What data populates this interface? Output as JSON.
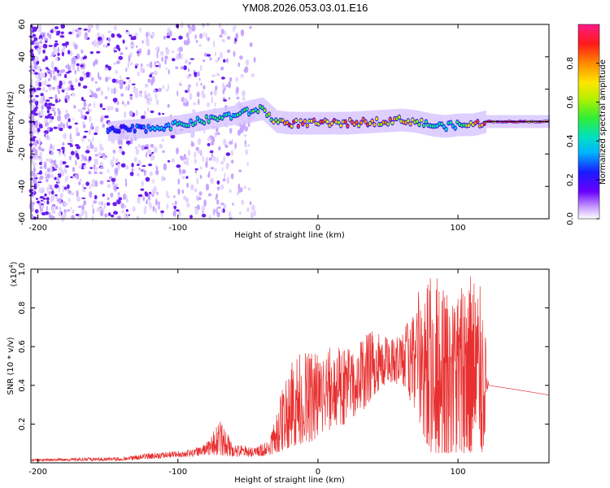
{
  "title": "YM08.2026.053.03.01.E16",
  "colors": {
    "snr_line": "#e83030",
    "speckle": "#7a2cf0",
    "background": "#ffffff"
  },
  "chart_data": [
    {
      "type": "heatmap",
      "title": "YM08.2026.053.03.01.E16",
      "xlabel": "Height of straight line (km)",
      "ylabel": "Frequency (Hz)",
      "xlim": [
        -205,
        165
      ],
      "ylim": [
        -60,
        60
      ],
      "xticks": [
        -200,
        -100,
        0,
        100
      ],
      "yticks": [
        60,
        40,
        20,
        0,
        -20,
        -40,
        -60
      ],
      "ytick_labels": [
        "60",
        "40",
        "20",
        "0",
        "-20",
        "-40",
        "-60"
      ],
      "colorbar": {
        "label": "Normalized spectral amplitude",
        "range": [
          0,
          1
        ],
        "ticks": [
          0.0,
          0.2,
          0.4,
          0.6,
          0.8
        ],
        "tick_labels": [
          "0.0",
          "0.2",
          "0.4",
          "0.6",
          "0.8"
        ],
        "colormap": "rainbow"
      },
      "ridge": {
        "description": "dominant frequency trace",
        "x": [
          -150,
          -140,
          -120,
          -100,
          -80,
          -60,
          -50,
          -40,
          -35,
          -30,
          -20,
          0,
          20,
          40,
          60,
          70,
          80,
          90,
          100,
          110,
          120,
          140,
          165
        ],
        "frequency": [
          -6,
          -5,
          -4,
          -2,
          1,
          4,
          6,
          8,
          4,
          0,
          -1,
          -1,
          -1,
          0,
          1,
          0,
          -2,
          -3,
          -2,
          -2,
          0,
          0,
          0
        ],
        "amplitude": [
          0.3,
          0.25,
          0.35,
          0.45,
          0.5,
          0.45,
          0.5,
          0.55,
          0.6,
          0.7,
          0.85,
          0.8,
          0.8,
          0.8,
          0.75,
          0.75,
          0.5,
          0.45,
          0.45,
          0.7,
          0.95,
          0.95,
          0.85
        ]
      }
    },
    {
      "type": "line",
      "xlabel": "Height of straight line (km)",
      "ylabel": "SNR (10 * v/v)",
      "yscale_label": "(x10",
      "yscale_exp": "4",
      "xlim": [
        -205,
        165
      ],
      "ylim": [
        0,
        1.0
      ],
      "xticks": [
        -200,
        -100,
        0,
        100
      ],
      "yticks": [
        0.2,
        0.4,
        0.6,
        0.8,
        1.0
      ],
      "ytick_labels": [
        "0.2",
        "0.4",
        "0.6",
        "0.8",
        "1.0"
      ],
      "series": [
        {
          "name": "SNR",
          "envelope": {
            "x": [
              -205,
              -140,
              -120,
              -100,
              -90,
              -80,
              -70,
              -60,
              -45,
              -35,
              -30,
              -20,
              -10,
              0,
              10,
              20,
              30,
              40,
              50,
              60,
              70,
              80,
              90,
              100,
              110,
              118,
              122,
              140,
              165
            ],
            "low": [
              0.01,
              0.01,
              0.02,
              0.03,
              0.03,
              0.04,
              0.04,
              0.03,
              0.03,
              0.04,
              0.05,
              0.08,
              0.1,
              0.12,
              0.18,
              0.2,
              0.25,
              0.35,
              0.42,
              0.4,
              0.25,
              0.05,
              0.05,
              0.05,
              0.05,
              0.05,
              0.4,
              0.38,
              0.35
            ],
            "high": [
              0.02,
              0.03,
              0.05,
              0.06,
              0.07,
              0.1,
              0.22,
              0.1,
              0.08,
              0.12,
              0.25,
              0.55,
              0.57,
              0.58,
              0.6,
              0.6,
              0.65,
              0.7,
              0.65,
              0.67,
              0.86,
              1.0,
              0.95,
              0.92,
              1.0,
              0.88,
              0.4,
              0.38,
              0.35
            ]
          }
        }
      ]
    }
  ]
}
